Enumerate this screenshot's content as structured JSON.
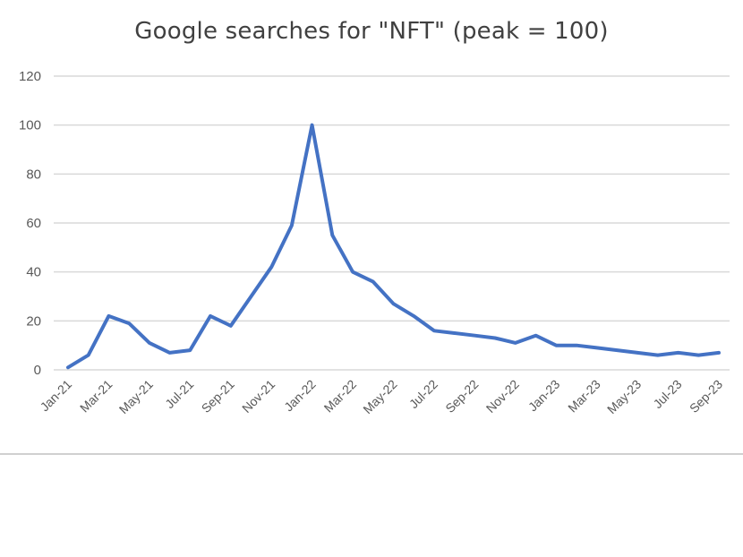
{
  "chart_data": {
    "type": "line",
    "title": "Google searches for \"NFT\" (peak = 100)",
    "xlabel": "",
    "ylabel": "",
    "ylim": [
      0,
      120
    ],
    "yticks": [
      0,
      20,
      40,
      60,
      80,
      100,
      120
    ],
    "grid": true,
    "legend": "none",
    "line_color": "#4472c4",
    "x_tick_labels": [
      "Jan-21",
      "Mar-21",
      "May-21",
      "Jul-21",
      "Sep-21",
      "Nov-21",
      "Jan-22",
      "Mar-22",
      "May-22",
      "Jul-22",
      "Sep-22",
      "Nov-22",
      "Jan-23",
      "Mar-23",
      "May-23",
      "Jul-23",
      "Sep-23"
    ],
    "x": [
      "Jan-21",
      "Feb-21",
      "Mar-21",
      "Apr-21",
      "May-21",
      "Jun-21",
      "Jul-21",
      "Aug-21",
      "Sep-21",
      "Oct-21",
      "Nov-21",
      "Dec-21",
      "Jan-22",
      "Feb-22",
      "Mar-22",
      "Apr-22",
      "May-22",
      "Jun-22",
      "Jul-22",
      "Aug-22",
      "Sep-22",
      "Oct-22",
      "Nov-22",
      "Dec-22",
      "Jan-23",
      "Feb-23",
      "Mar-23",
      "Apr-23",
      "May-23",
      "Jun-23",
      "Jul-23",
      "Aug-23",
      "Sep-23"
    ],
    "series": [
      {
        "values": [
          1,
          6,
          22,
          19,
          11,
          7,
          8,
          22,
          18,
          30,
          42,
          59,
          100,
          55,
          40,
          36,
          27,
          22,
          16,
          15,
          14,
          13,
          11,
          14,
          10,
          10,
          9,
          8,
          7,
          6,
          7,
          6,
          7
        ]
      }
    ]
  }
}
